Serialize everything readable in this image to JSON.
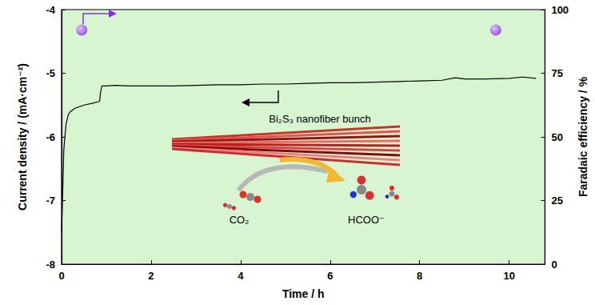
{
  "chart_data": {
    "type": "line",
    "x_label": "Time / h",
    "y_label": "Current density / (mA·cm⁻²)",
    "y2_label": "Faradaic efficiency / %",
    "xlim": [
      0,
      10.8
    ],
    "xticks": [
      0,
      2,
      4,
      6,
      8,
      10
    ],
    "ylim": [
      -8,
      -4
    ],
    "yticks": [
      -8,
      -7,
      -6,
      -5,
      -4
    ],
    "y2lim": [
      0,
      100
    ],
    "y2ticks": [
      0,
      25,
      50,
      75,
      100
    ],
    "grid": false,
    "annotations": [
      "Bi₂S₃ nanofiber bunch",
      "CO₂",
      "HCOO⁻"
    ],
    "series": [
      {
        "type": "line",
        "color": "#000000",
        "line_style": "solid",
        "x": [
          0,
          0.02,
          0.05,
          0.1,
          0.15,
          0.2,
          0.3,
          0.5,
          0.7,
          0.85,
          0.87,
          0.9,
          1.0,
          1.2,
          1.5,
          2,
          2.5,
          3,
          3.5,
          4,
          4.5,
          5,
          5.5,
          6,
          6.5,
          7,
          7.5,
          8,
          8.5,
          8.8,
          9,
          9.5,
          10,
          10.3,
          10.6
        ],
        "values": [
          -7.5,
          -7.0,
          -6.2,
          -5.8,
          -5.65,
          -5.6,
          -5.55,
          -5.5,
          -5.47,
          -5.44,
          -5.3,
          -5.2,
          -5.2,
          -5.19,
          -5.2,
          -5.2,
          -5.2,
          -5.19,
          -5.18,
          -5.18,
          -5.17,
          -5.17,
          -5.16,
          -5.15,
          -5.15,
          -5.14,
          -5.13,
          -5.12,
          -5.11,
          -5.07,
          -5.09,
          -5.09,
          -5.08,
          -5.06,
          -5.08
        ]
      },
      {
        "type": "scatter",
        "axis": "y2",
        "color": "#8a2be2",
        "marker": "circle",
        "x": [
          0.45,
          9.7
        ],
        "values": [
          92,
          92
        ]
      }
    ]
  }
}
